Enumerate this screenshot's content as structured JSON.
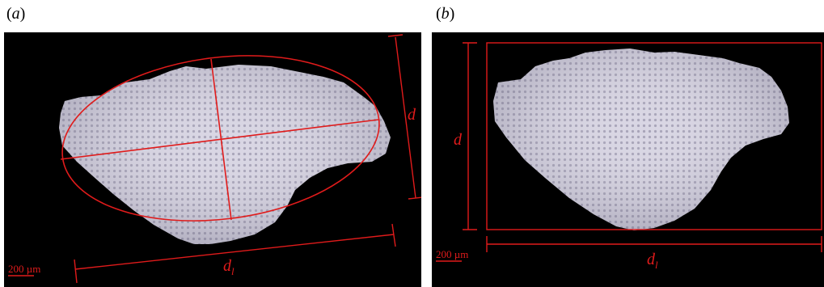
{
  "figure": {
    "panel_a": {
      "label_paren_open": "(",
      "label_letter": "a",
      "label_paren_close": ")",
      "dim_minor": "d",
      "dim_major_base": "d",
      "dim_major_sub": "l",
      "scale_text": "200 µm"
    },
    "panel_b": {
      "label_paren_open": "(",
      "label_letter": "b",
      "label_paren_close": ")",
      "dim_height": "d",
      "dim_width_base": "d",
      "dim_width_sub": "l",
      "scale_text": "200 µm"
    }
  },
  "colors": {
    "annotation": "#e01b1b",
    "background": "#000000",
    "particle": "#d4d0e0"
  }
}
